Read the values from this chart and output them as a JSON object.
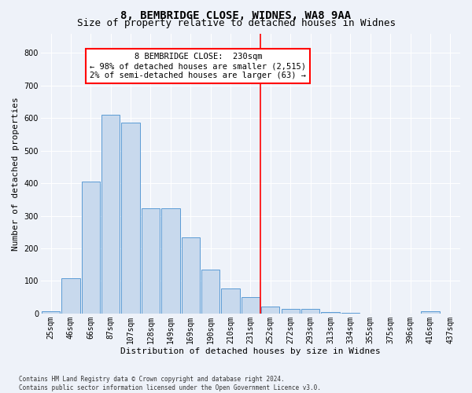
{
  "title": "8, BEMBRIDGE CLOSE, WIDNES, WA8 9AA",
  "subtitle": "Size of property relative to detached houses in Widnes",
  "xlabel": "Distribution of detached houses by size in Widnes",
  "ylabel": "Number of detached properties",
  "footnote": "Contains HM Land Registry data © Crown copyright and database right 2024.\nContains public sector information licensed under the Open Government Licence v3.0.",
  "bar_labels": [
    "25sqm",
    "46sqm",
    "66sqm",
    "87sqm",
    "107sqm",
    "128sqm",
    "149sqm",
    "169sqm",
    "190sqm",
    "210sqm",
    "231sqm",
    "252sqm",
    "272sqm",
    "293sqm",
    "313sqm",
    "334sqm",
    "355sqm",
    "375sqm",
    "396sqm",
    "416sqm",
    "437sqm"
  ],
  "bar_values": [
    7,
    108,
    405,
    611,
    585,
    324,
    324,
    235,
    135,
    78,
    50,
    22,
    14,
    15,
    5,
    2,
    0,
    0,
    0,
    8,
    0
  ],
  "bar_color": "#c8d9ed",
  "bar_edge_color": "#5b9bd5",
  "property_line_x": 10.5,
  "property_label": "8 BEMBRIDGE CLOSE:  230sqm",
  "annotation_line1": "← 98% of detached houses are smaller (2,515)",
  "annotation_line2": "2% of semi-detached houses are larger (63) →",
  "ylim": [
    0,
    860
  ],
  "yticks": [
    0,
    100,
    200,
    300,
    400,
    500,
    600,
    700,
    800
  ],
  "bg_color": "#eef2f9",
  "grid_color": "#ffffff",
  "title_fontsize": 10,
  "subtitle_fontsize": 9,
  "axis_label_fontsize": 8,
  "tick_fontsize": 7,
  "annot_fontsize": 7.5,
  "footnote_fontsize": 5.5
}
